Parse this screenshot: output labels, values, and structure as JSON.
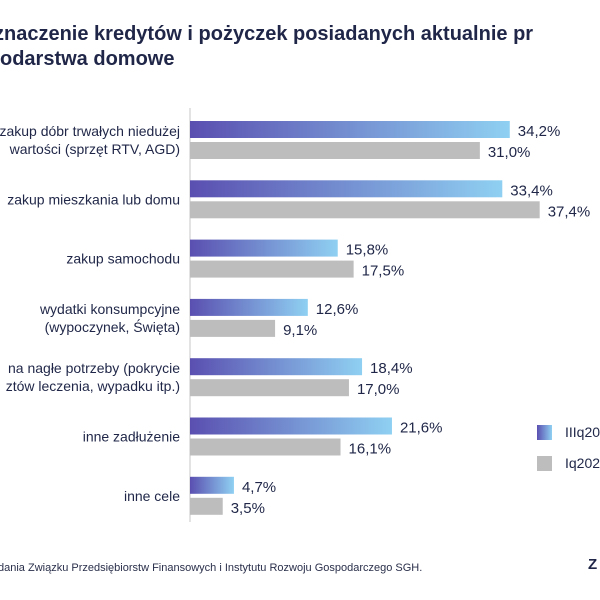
{
  "title_lines": [
    "znaczenie kredytów i pożyczek posiadanych aktualnie pr",
    "odarstwa domowe"
  ],
  "footer": "dania Związku Przedsiębiorstw Finansowych i Instytutu Rozwoju Gospodarczego SGH.",
  "logo_text": "Z",
  "colors": {
    "series1_start": "#5a4fb0",
    "series1_end": "#8fd0f2",
    "series2": "#bdbdbd",
    "text": "#1f2647",
    "axis": "#c7c7c7"
  },
  "chart_data": {
    "type": "bar",
    "orientation": "horizontal",
    "categories": [
      [
        "zakup dóbr trwałych niedużej",
        "wartości (sprzęt RTV, AGD)"
      ],
      [
        "zakup mieszkania lub domu"
      ],
      [
        "zakup samochodu"
      ],
      [
        "wydatki konsumpcyjne",
        "(wypoczynek, Święta)"
      ],
      [
        "na nagłe potrzeby (pokrycie",
        "ztów leczenia, wypadku itp.)"
      ],
      [
        "inne zadłużenie"
      ],
      [
        "inne cele"
      ]
    ],
    "series": [
      {
        "name": "IIIq20",
        "values": [
          34.2,
          33.4,
          15.8,
          12.6,
          18.4,
          21.6,
          4.7
        ],
        "labels": [
          "34,2%",
          "33,4%",
          "15,8%",
          "12,6%",
          "18,4%",
          "21,6%",
          "4,7%"
        ]
      },
      {
        "name": "Iq202",
        "values": [
          31.0,
          37.4,
          17.5,
          9.1,
          17.0,
          16.1,
          3.5
        ],
        "labels": [
          "31,0%",
          "37,4%",
          "17,5%",
          "9,1%",
          "17,0%",
          "16,1%",
          "3,5%"
        ]
      }
    ],
    "xlim": [
      0,
      40
    ],
    "legend": "right"
  }
}
